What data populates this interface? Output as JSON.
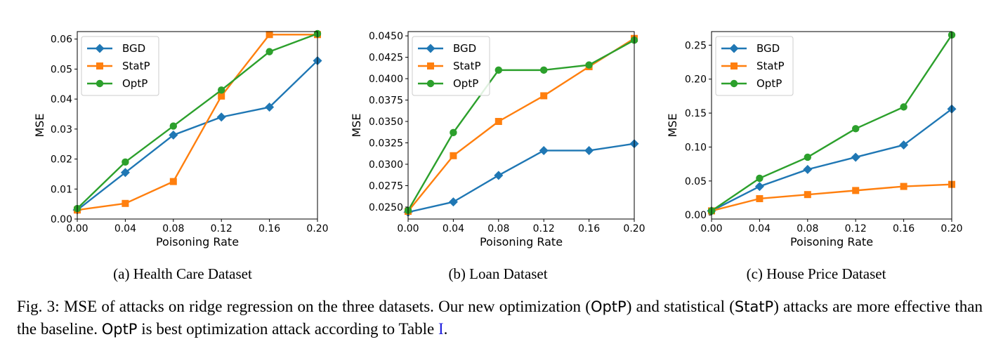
{
  "colors": {
    "BGD": "#1f77b4",
    "StatP": "#ff7f0e",
    "OptP": "#2ca02c"
  },
  "chart_data": [
    {
      "type": "line",
      "caption": "(a) Health Care Dataset",
      "xlabel": "Poisoning Rate",
      "ylabel": "MSE",
      "x": [
        0.0,
        0.04,
        0.08,
        0.12,
        0.16,
        0.2
      ],
      "xticks": [
        "0.00",
        "0.04",
        "0.08",
        "0.12",
        "0.16",
        "0.20"
      ],
      "xlim": [
        0,
        0.2
      ],
      "ylim": [
        0,
        0.0625
      ],
      "yticks": [
        0.0,
        0.01,
        0.02,
        0.03,
        0.04,
        0.05,
        0.06
      ],
      "ytick_labels": [
        "0.00",
        "0.01",
        "0.02",
        "0.03",
        "0.04",
        "0.05",
        "0.06"
      ],
      "legend": "top-left",
      "series": [
        {
          "name": "BGD",
          "marker": "diamond",
          "values": [
            0.003,
            0.0155,
            0.028,
            0.034,
            0.0373,
            0.0528
          ]
        },
        {
          "name": "StatP",
          "marker": "square",
          "values": [
            0.003,
            0.0052,
            0.0125,
            0.041,
            0.0615,
            0.0615
          ]
        },
        {
          "name": "OptP",
          "marker": "circle",
          "values": [
            0.0035,
            0.019,
            0.031,
            0.043,
            0.0558,
            0.0618
          ]
        }
      ]
    },
    {
      "type": "line",
      "caption": "(b) Loan Dataset",
      "xlabel": "Poisoning Rate",
      "ylabel": "MSE",
      "x": [
        0.0,
        0.04,
        0.08,
        0.12,
        0.16,
        0.2
      ],
      "xticks": [
        "0.00",
        "0.04",
        "0.08",
        "0.12",
        "0.16",
        "0.20"
      ],
      "xlim": [
        0,
        0.2
      ],
      "ylim": [
        0.0236,
        0.0455
      ],
      "yticks": [
        0.025,
        0.0275,
        0.03,
        0.0325,
        0.035,
        0.0375,
        0.04,
        0.0425,
        0.045
      ],
      "ytick_labels": [
        "0.0250",
        "0.0275",
        "0.0300",
        "0.0325",
        "0.0350",
        "0.0375",
        "0.0400",
        "0.0425",
        "0.0450"
      ],
      "legend": "top-left",
      "series": [
        {
          "name": "BGD",
          "marker": "diamond",
          "values": [
            0.0244,
            0.0256,
            0.0287,
            0.0316,
            0.0316,
            0.0324
          ]
        },
        {
          "name": "StatP",
          "marker": "square",
          "values": [
            0.0245,
            0.031,
            0.035,
            0.038,
            0.0414,
            0.0447
          ]
        },
        {
          "name": "OptP",
          "marker": "circle",
          "values": [
            0.0246,
            0.0337,
            0.041,
            0.041,
            0.0416,
            0.0445
          ]
        }
      ]
    },
    {
      "type": "line",
      "caption": "(c) House Price Dataset",
      "xlabel": "Poisoning Rate",
      "ylabel": "MSE",
      "x": [
        0.0,
        0.04,
        0.08,
        0.12,
        0.16,
        0.2
      ],
      "xticks": [
        "0.00",
        "0.04",
        "0.08",
        "0.12",
        "0.16",
        "0.20"
      ],
      "xlim": [
        0,
        0.2
      ],
      "ylim": [
        -0.006,
        0.27
      ],
      "yticks": [
        0.0,
        0.05,
        0.1,
        0.15,
        0.2,
        0.25
      ],
      "ytick_labels": [
        "0.00",
        "0.05",
        "0.10",
        "0.15",
        "0.20",
        "0.25"
      ],
      "legend": "top-left",
      "series": [
        {
          "name": "BGD",
          "marker": "diamond",
          "values": [
            0.006,
            0.042,
            0.067,
            0.085,
            0.103,
            0.156
          ]
        },
        {
          "name": "StatP",
          "marker": "square",
          "values": [
            0.006,
            0.024,
            0.03,
            0.036,
            0.042,
            0.045
          ]
        },
        {
          "name": "OptP",
          "marker": "circle",
          "values": [
            0.006,
            0.054,
            0.085,
            0.127,
            0.159,
            0.265
          ]
        }
      ]
    }
  ],
  "caption": {
    "prefix": "Fig. 3: MSE of attacks on ridge regression on the three datasets. Our new optimization (",
    "optp1": "OptP",
    "mid1": ") and statistical (",
    "statp": "StatP",
    "mid2": ") attacks are more effective than the baseline. ",
    "optp2": "OptP",
    "mid3": " is best optimization attack according to Table ",
    "ref": "I",
    "suffix": "."
  }
}
